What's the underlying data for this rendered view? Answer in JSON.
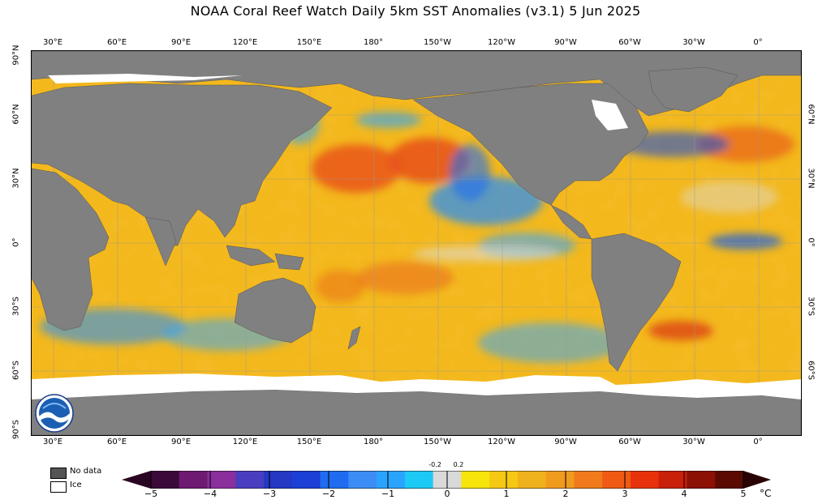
{
  "title": "NOAA Coral Reef Watch Daily 5km SST Anomalies  (v3.1)   5 Jun 2025",
  "lon_labels": [
    "30°E",
    "60°E",
    "90°E",
    "120°E",
    "150°E",
    "180°",
    "150°W",
    "120°W",
    "90°W",
    "60°W",
    "30°W",
    "0°"
  ],
  "lat_labels_left": [
    "90°N",
    "60°N",
    "30°N",
    "0°",
    "30°S",
    "60°S",
    "90°S"
  ],
  "lat_labels_right": [
    "60°N",
    "30°N",
    "0°",
    "30°S",
    "60°S"
  ],
  "legend": {
    "no_data": "No data",
    "ice": "Ice",
    "no_data_color": "#555555",
    "ice_color": "#ffffff"
  },
  "colorbar": {
    "ticks": [
      "−5",
      "−4",
      "−3",
      "−2",
      "−1",
      "0",
      "1",
      "2",
      "3",
      "4",
      "5"
    ],
    "small_labels": [
      "-0.2",
      "0.2"
    ],
    "unit": "°C",
    "colors": [
      "#3b0a3b",
      "#6e1a73",
      "#8a2f9c",
      "#4a3ec0",
      "#2438c4",
      "#1c3fd6",
      "#1f6cf0",
      "#3c8cf5",
      "#2aa3ff",
      "#1ccaf5",
      "#d9d9d9",
      "#f7e40a",
      "#f5c814",
      "#f0b21c",
      "#f09a1e",
      "#f07a1c",
      "#f05a14",
      "#e8320c",
      "#c8200a",
      "#8c1004",
      "#5a0a02"
    ]
  },
  "logo_icon": "noaa-logo-icon"
}
